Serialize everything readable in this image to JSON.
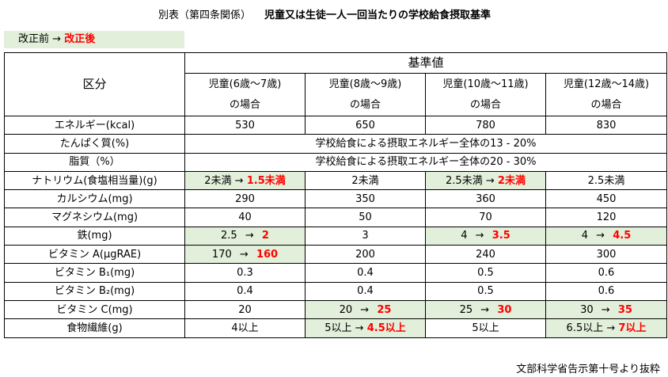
{
  "title": {
    "prefix": "別表（第四条関係）",
    "main": "児童又は生徒一人一回当たりの学校給食摂取基準"
  },
  "legend": {
    "before": "改正前",
    "arrow": "→",
    "after": "改正後"
  },
  "table": {
    "kubun_header": "区分",
    "kijun_header": "基準値",
    "columns": [
      {
        "line1": "児童(6歳〜7歳)",
        "line2": "の場合"
      },
      {
        "line1": "児童(8歳〜9歳)",
        "line2": "の場合"
      },
      {
        "line1": "児童(10歳〜11歳)",
        "line2": "の場合"
      },
      {
        "line1": "児童(12歳〜14歳)",
        "line2": "の場合"
      }
    ],
    "rows": {
      "energy": {
        "label": "エネルギー(kcal)",
        "values": [
          "530",
          "650",
          "780",
          "830"
        ]
      },
      "protein": {
        "label": "たんぱく質(%)",
        "value": "学校給食による摂取エネルギー全体の13 - 20%"
      },
      "fat": {
        "label": "脂質（%）",
        "value": "学校給食による摂取エネルギー全体の20 - 30%"
      },
      "sodium": {
        "label": "ナトリウム(食塩相当量)(g)",
        "c1_old": "2未満",
        "c1_new": "1.5未満",
        "c2": "2未満",
        "c3_old": "2.5未満",
        "c3_new": "2未満",
        "c4": "2.5未満"
      },
      "calcium": {
        "label": "カルシウム(mg)",
        "values": [
          "290",
          "350",
          "360",
          "450"
        ]
      },
      "magnesium": {
        "label": "マグネシウム(mg)",
        "values": [
          "40",
          "50",
          "70",
          "120"
        ]
      },
      "iron": {
        "label": "鉄(mg)",
        "c1_old": "2.5",
        "c1_new": "2",
        "c2": "3",
        "c3_old": "4",
        "c3_new": "3.5",
        "c4_old": "4",
        "c4_new": "4.5"
      },
      "vitamin_a": {
        "label": "ビタミン A(μgRAE)",
        "c1_old": "170",
        "c1_new": "160",
        "c2": "200",
        "c3": "240",
        "c4": "300"
      },
      "vitamin_b1": {
        "label": "ビタミン B₁(mg)",
        "values": [
          "0.3",
          "0.4",
          "0.5",
          "0.6"
        ]
      },
      "vitamin_b2": {
        "label": "ビタミン B₂(mg)",
        "values": [
          "0.4",
          "0.4",
          "0.5",
          "0.6"
        ]
      },
      "vitamin_c": {
        "label": "ビタミン C(mg)",
        "c1": "20",
        "c2_old": "20",
        "c2_new": "25",
        "c3_old": "25",
        "c3_new": "30",
        "c4_old": "30",
        "c4_new": "35"
      },
      "fiber": {
        "label": "食物繊維(g)",
        "c1": "4以上",
        "c2_old": "5以上",
        "c2_new": "4.5以上",
        "c3": "5以上",
        "c4_old": "6.5以上",
        "c4_new": "7以上"
      }
    },
    "arrow": "→"
  },
  "footer": "文部科学省告示第十号より抜粋",
  "colors": {
    "highlight": "#e2efda",
    "changed": "#ff0000"
  }
}
